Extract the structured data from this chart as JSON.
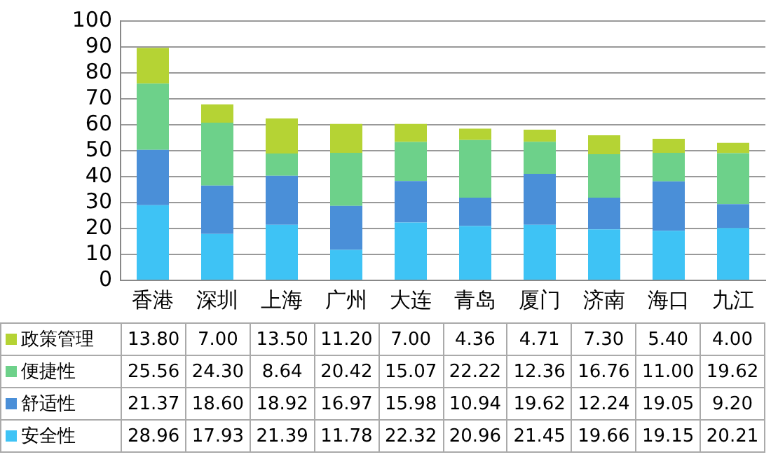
{
  "chart_data": {
    "type": "bar",
    "stacked": true,
    "categories": [
      "香港",
      "深圳",
      "上海",
      "广州",
      "大连",
      "青岛",
      "厦门",
      "济南",
      "海口",
      "九江"
    ],
    "series": [
      {
        "name": "安全性",
        "color": "#3ec3f5",
        "values": [
          28.96,
          17.93,
          21.39,
          11.78,
          22.32,
          20.96,
          21.45,
          19.66,
          19.15,
          20.21
        ],
        "value_labels": [
          "28.96",
          "17.93",
          "21.39",
          "11.78",
          "22.32",
          "20.96",
          "21.45",
          "19.66",
          "19.15",
          "20.21"
        ]
      },
      {
        "name": "舒适性",
        "color": "#4a8fd8",
        "values": [
          21.37,
          18.6,
          18.92,
          16.97,
          15.98,
          10.94,
          19.62,
          12.24,
          19.05,
          9.2
        ],
        "value_labels": [
          "21.37",
          "18.60",
          "18.92",
          "16.97",
          "15.98",
          "10.94",
          "19.62",
          "12.24",
          "19.05",
          "9.20"
        ]
      },
      {
        "name": "便捷性",
        "color": "#6dd18a",
        "values": [
          25.56,
          24.3,
          8.64,
          20.42,
          15.07,
          22.22,
          12.36,
          16.76,
          11.0,
          19.62
        ],
        "value_labels": [
          "25.56",
          "24.30",
          "8.64",
          "20.42",
          "15.07",
          "22.22",
          "12.36",
          "16.76",
          "11.00",
          "19.62"
        ]
      },
      {
        "name": "政策管理",
        "color": "#b5d334",
        "values": [
          13.8,
          7.0,
          13.5,
          11.2,
          7.0,
          4.36,
          4.71,
          7.3,
          5.4,
          4.0
        ],
        "value_labels": [
          "13.80",
          "7.00",
          "13.50",
          "11.20",
          "7.00",
          "4.36",
          "4.71",
          "7.30",
          "5.40",
          "4.00"
        ]
      }
    ],
    "ylim": [
      0,
      100
    ],
    "yticks": [
      0,
      10,
      20,
      30,
      40,
      50,
      60,
      70,
      80,
      90,
      100
    ],
    "grid": "y",
    "legend": "bottom"
  }
}
